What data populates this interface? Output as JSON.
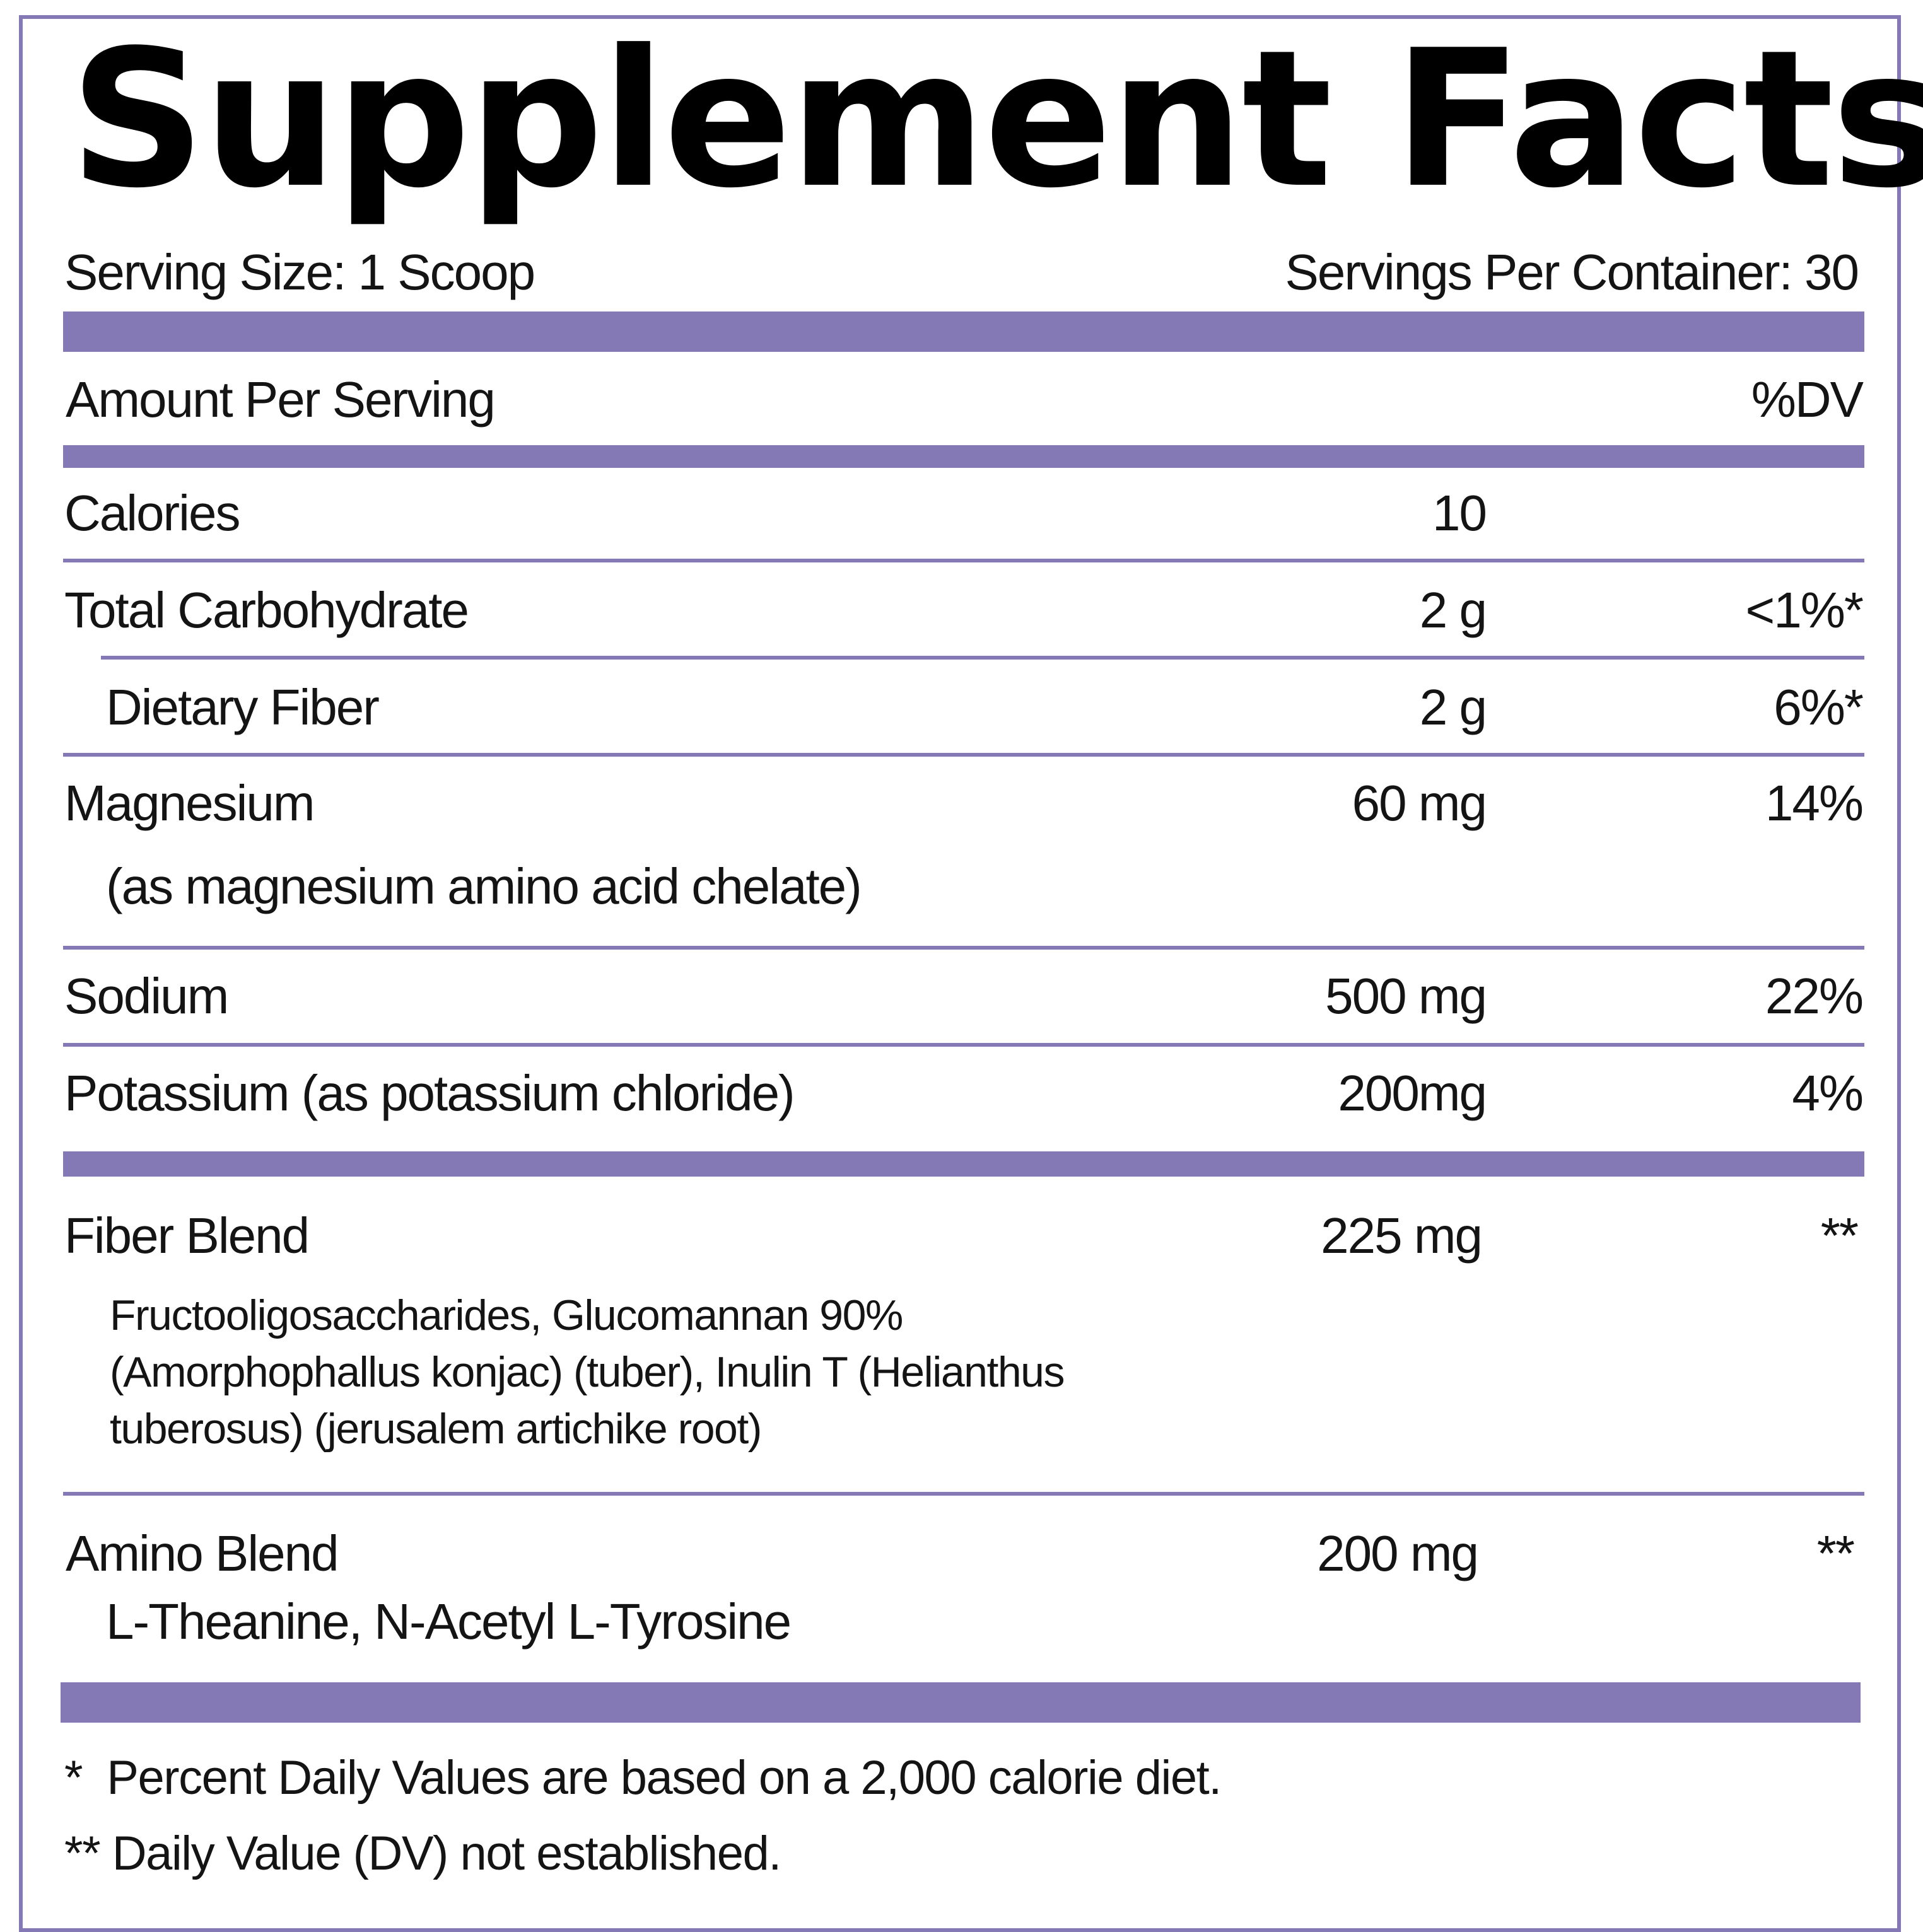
{
  "title": "Supplement Facts",
  "serving": {
    "size": "Serving Size: 1 Scoop",
    "per_container": "Servings Per Container: 30"
  },
  "header": {
    "amount": "Amount Per Serving",
    "dv": "%DV"
  },
  "rows": [
    {
      "name": "Calories",
      "amount": "10",
      "dv": ""
    },
    {
      "name": "Total Carbohydrate",
      "amount": "2 g",
      "dv": "<1%*"
    },
    {
      "name": "Dietary Fiber",
      "amount": "2 g",
      "dv": "6%*"
    },
    {
      "name": "Magnesium",
      "note": "(as magnesium amino acid chelate)",
      "amount": "60 mg",
      "dv": "14%"
    },
    {
      "name": "Sodium",
      "amount": "500 mg",
      "dv": "22%"
    },
    {
      "name": "Potassium (as potassium chloride)",
      "amount": "200mg",
      "dv": "4%"
    }
  ],
  "blends": [
    {
      "name": "Fiber Blend",
      "amount": "225 mg",
      "dv": "**",
      "ingredients": [
        "Fructooligosaccharides, Glucomannan 90%",
        "(Amorphophallus konjac) (tuber), Inulin T (Helianthus",
        "tuberosus) (jerusalem artichike root)"
      ]
    },
    {
      "name": "Amino Blend",
      "amount": "200 mg",
      "dv": "**",
      "ingredients": [
        "L-Theanine, N-Acetyl L-Tyrosine"
      ]
    }
  ],
  "footnotes": [
    "*  Percent Daily Values are based on a 2,000 calorie diet.",
    "** Daily Value (DV) not established."
  ],
  "colors": {
    "accent": "#8479b4",
    "text": "#141414"
  }
}
